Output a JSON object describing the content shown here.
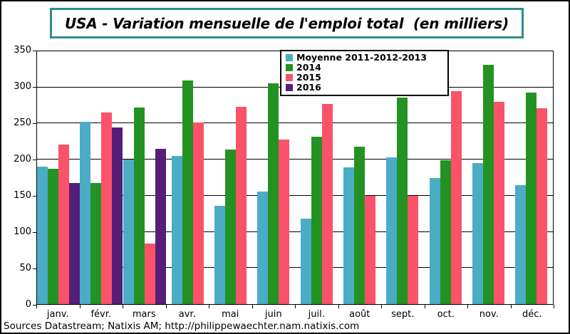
{
  "title": "USA - Variation mensuelle de l'emploi total  (en milliers)",
  "source_line": "Sources Datastream; Natixis AM; http://philippewaechter.nam.natixis.com",
  "colors": {
    "title_border": "#2D8D8E",
    "axis": "#000000",
    "moyenne": "#4BACC6",
    "y2014": "#249223",
    "y2015": "#FA5369",
    "y2016": "#551E78"
  },
  "chart_data": {
    "type": "bar",
    "title": "USA - Variation mensuelle de l'emploi total  (en milliers)",
    "categories": [
      "janv.",
      "févr.",
      "mars",
      "avr.",
      "mai",
      "juin",
      "juil.",
      "août",
      "sept.",
      "oct.",
      "nov.",
      "déc."
    ],
    "series": [
      {
        "name": "Moyenne 2011-2012-2013",
        "color": "#4BACC6",
        "values": [
          190,
          252,
          200,
          205,
          136,
          156,
          118,
          189,
          203,
          175,
          195,
          165
        ]
      },
      {
        "name": "2014",
        "color": "#249223",
        "values": [
          187,
          168,
          272,
          310,
          214,
          306,
          232,
          218,
          286,
          199,
          331,
          293
        ]
      },
      {
        "name": "2015",
        "color": "#FA5369",
        "values": [
          221,
          265,
          84,
          251,
          273,
          228,
          277,
          150,
          150,
          295,
          280,
          271
        ]
      },
      {
        "name": "2016",
        "color": "#551E78",
        "values": [
          168,
          245,
          215,
          null,
          null,
          null,
          null,
          null,
          null,
          null,
          null,
          null
        ]
      }
    ],
    "ylim": [
      0,
      350
    ],
    "ytick_interval": 50,
    "yticks": [
      0,
      50,
      100,
      150,
      200,
      250,
      300,
      350
    ],
    "grid": true,
    "legend_position": "top-center"
  }
}
